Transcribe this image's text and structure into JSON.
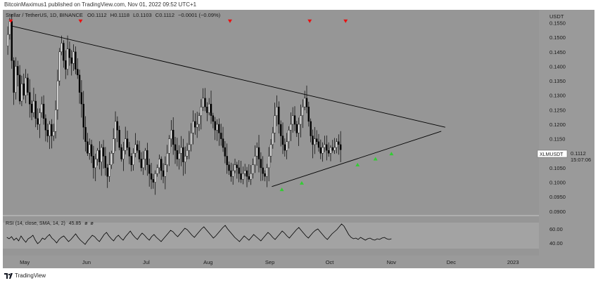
{
  "header": {
    "published_line": "BitcoinMaximus1 published on TradingView.com, Nov 01, 2022 09:52 UTC+1"
  },
  "legend": {
    "symbol": "Stellar / TetherUS, 1D, BINANCE",
    "open_label": "O",
    "open": "0.1112",
    "high_label": "H",
    "high": "0.1118",
    "low_label": "L",
    "low": "0.1103",
    "close_label": "C",
    "close": "0.1112",
    "change": "−0.0001 (−0.09%)"
  },
  "price_axis": {
    "currency": "USDT",
    "ticks": [
      "0.1550",
      "0.1500",
      "0.1450",
      "0.1400",
      "0.1350",
      "0.1300",
      "0.1250",
      "0.1200",
      "0.1150",
      "0.1050",
      "0.1000",
      "0.0950",
      "0.0900"
    ],
    "tick_values": [
      0.155,
      0.15,
      0.145,
      0.14,
      0.135,
      0.13,
      0.125,
      0.12,
      0.115,
      0.105,
      0.1,
      0.095,
      0.09
    ],
    "min": 0.0885,
    "max": 0.1595
  },
  "last_price": {
    "symbol": "XLMUSDT",
    "price": "0.1112",
    "countdown": "15:07:06"
  },
  "rsi": {
    "label": "RSI (14, close, SMA, 14, 2)",
    "value": "45.85",
    "na1": "ø",
    "na2": "ø",
    "ticks": [
      "60.00",
      "40.00"
    ],
    "min": 25,
    "max": 75,
    "band_low": 30,
    "band_high": 70,
    "values": [
      48,
      46,
      49,
      44,
      47,
      43,
      50,
      45,
      41,
      46,
      48,
      51,
      44,
      39,
      42,
      47,
      45,
      49,
      52,
      47,
      44,
      40,
      45,
      48,
      50,
      46,
      42,
      45,
      49,
      53,
      48,
      44,
      41,
      38,
      43,
      47,
      51,
      49,
      45,
      42,
      47,
      52,
      55,
      50,
      46,
      43,
      48,
      51,
      47,
      44,
      49,
      53,
      57,
      52,
      48,
      45,
      50,
      54,
      51,
      47,
      44,
      49,
      52,
      48,
      45,
      42,
      46,
      50,
      54,
      58,
      56,
      52,
      49,
      53,
      57,
      61,
      59,
      55,
      51,
      48,
      52,
      56,
      60,
      63,
      59,
      55,
      51,
      47,
      50,
      54,
      58,
      62,
      65,
      60,
      56,
      52,
      48,
      45,
      42,
      46,
      50,
      47,
      44,
      48,
      52,
      49,
      46,
      43,
      47,
      51,
      55,
      52,
      48,
      45,
      49,
      53,
      57,
      54,
      50,
      47,
      51,
      55,
      59,
      62,
      58,
      54,
      50,
      47,
      51,
      55,
      58,
      60,
      56,
      52,
      48,
      45,
      49,
      53,
      56,
      59,
      63,
      67,
      64,
      58,
      52,
      48,
      46,
      47,
      45,
      48,
      46,
      44,
      46,
      47,
      45,
      44,
      46,
      45,
      47,
      48,
      46,
      45,
      46
    ]
  },
  "time_axis": {
    "labels": [
      "May",
      "Jun",
      "Jul",
      "Aug",
      "Sep",
      "Oct",
      "Nov",
      "Dec",
      "2023"
    ]
  },
  "chart_data": {
    "type": "candlestick",
    "title": "Stellar / TetherUS, 1D, BINANCE",
    "ylabel": "USDT",
    "ylim": [
      0.0885,
      0.1595
    ],
    "x_range_days": [
      "2022-04-20",
      "2023-01-14"
    ],
    "closes": [
      0.151,
      0.1555,
      0.142,
      0.131,
      0.14,
      0.137,
      0.128,
      0.134,
      0.13,
      0.136,
      0.131,
      0.127,
      0.124,
      0.128,
      0.122,
      0.12,
      0.124,
      0.127,
      0.122,
      0.118,
      0.116,
      0.12,
      0.116,
      0.1175,
      0.125,
      0.135,
      0.145,
      0.148,
      0.142,
      0.139,
      0.146,
      0.143,
      0.141,
      0.145,
      0.139,
      0.137,
      0.131,
      0.127,
      0.119,
      0.114,
      0.11,
      0.113,
      0.109,
      0.105,
      0.108,
      0.111,
      0.107,
      0.112,
      0.109,
      0.105,
      0.102,
      0.106,
      0.11,
      0.115,
      0.121,
      0.118,
      0.112,
      0.108,
      0.111,
      0.115,
      0.112,
      0.109,
      0.106,
      0.11,
      0.113,
      0.111,
      0.108,
      0.105,
      0.108,
      0.111,
      0.106,
      0.103,
      0.101,
      0.1,
      0.103,
      0.105,
      0.108,
      0.104,
      0.102,
      0.106,
      0.11,
      0.115,
      0.118,
      0.113,
      0.111,
      0.108,
      0.11,
      0.112,
      0.107,
      0.109,
      0.111,
      0.113,
      0.117,
      0.121,
      0.119,
      0.12,
      0.123,
      0.126,
      0.129,
      0.126,
      0.124,
      0.127,
      0.123,
      0.121,
      0.118,
      0.12,
      0.117,
      0.115,
      0.112,
      0.109,
      0.106,
      0.104,
      0.102,
      0.104,
      0.106,
      0.105,
      0.103,
      0.101,
      0.103,
      0.104,
      0.102,
      0.101,
      0.103,
      0.106,
      0.109,
      0.112,
      0.108,
      0.105,
      0.103,
      0.102,
      0.105,
      0.109,
      0.113,
      0.117,
      0.123,
      0.126,
      0.12,
      0.116,
      0.113,
      0.111,
      0.114,
      0.118,
      0.12,
      0.123,
      0.12,
      0.117,
      0.12,
      0.123,
      0.126,
      0.129,
      0.126,
      0.121,
      0.116,
      0.113,
      0.115,
      0.114,
      0.112,
      0.11,
      0.112,
      0.113,
      0.111,
      0.11,
      0.112,
      0.111,
      0.112,
      0.114,
      0.113,
      0.1112
    ],
    "resistance_line": {
      "from": [
        "2022-04-24",
        0.154
      ],
      "to": [
        "2022-11-28",
        0.119
      ]
    },
    "support_line": {
      "from": [
        "2022-09-02",
        0.0985
      ],
      "to": [
        "2022-11-26",
        0.1176
      ]
    },
    "down_markers": [
      "2022-04-24",
      "2022-05-29",
      "2022-08-12",
      "2022-09-21",
      "2022-10-09"
    ],
    "up_markers": [
      "2022-09-07",
      "2022-09-17",
      "2022-10-15",
      "2022-10-24",
      "2022-11-01"
    ],
    "last_close": 0.1112
  }
}
